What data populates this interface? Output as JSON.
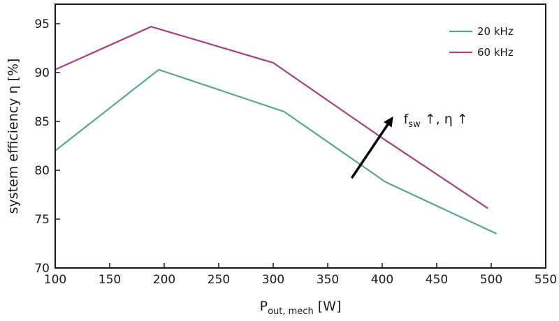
{
  "chart_data": {
    "type": "line",
    "xlabel": "P",
    "xlabel_sub": "out, mech",
    "xlabel_unit": " [W]",
    "ylabel": "system efficiency η [%]",
    "xlim": [
      100,
      550
    ],
    "ylim": [
      70,
      97
    ],
    "xticks": [
      100,
      150,
      200,
      250,
      300,
      350,
      400,
      450,
      500,
      550
    ],
    "yticks": [
      70,
      75,
      80,
      85,
      90,
      95
    ],
    "grid": false,
    "legend_position": "top-right",
    "series": [
      {
        "name": "20 kHz",
        "color": "#5aa68f",
        "x": [
          100,
          195,
          310,
          403,
          505
        ],
        "y": [
          82.0,
          90.3,
          86.0,
          78.8,
          73.5
        ]
      },
      {
        "name": "60 kHz",
        "color": "#a8417a",
        "x": [
          100,
          188,
          300,
          400,
          497
        ],
        "y": [
          90.3,
          94.7,
          91.0,
          83.3,
          76.1
        ]
      }
    ],
    "annotation": {
      "text_main": "f",
      "text_sub": "sw",
      "text_rest": " ↑, η ↑",
      "arrow_from": [
        372,
        79.2
      ],
      "arrow_to": [
        410,
        85.5
      ]
    }
  }
}
